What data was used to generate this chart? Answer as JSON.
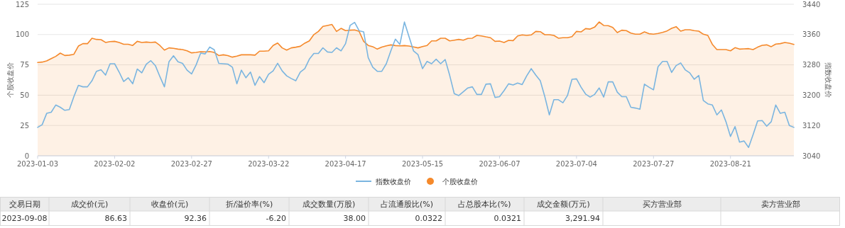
{
  "chart_data": [
    {
      "type": "area",
      "ylabel": "个股收盘价",
      "y2label": "指数收盘价",
      "ylim": [
        0,
        125
      ],
      "yticks": [
        0,
        25,
        50,
        75,
        100,
        125
      ],
      "y2lim": [
        3040,
        3440
      ],
      "y2ticks": [
        3040,
        3120,
        3200,
        3280,
        3360,
        3440
      ],
      "grid": "y",
      "legend": "bottom",
      "marker": "none",
      "line_style": "solid",
      "categories": [
        "2023-01-03",
        null,
        null,
        null,
        null,
        null,
        null,
        null,
        null,
        null,
        null,
        null,
        null,
        null,
        null,
        null,
        null,
        "2023-02-02",
        null,
        null,
        null,
        null,
        null,
        null,
        null,
        null,
        null,
        null,
        null,
        null,
        null,
        null,
        null,
        null,
        "2023-02-27",
        null,
        null,
        null,
        null,
        null,
        null,
        null,
        null,
        null,
        null,
        null,
        null,
        null,
        null,
        null,
        null,
        "2023-03-22",
        null,
        null,
        null,
        null,
        null,
        null,
        null,
        null,
        null,
        null,
        null,
        null,
        null,
        null,
        null,
        null,
        "2023-04-17",
        null,
        null,
        null,
        null,
        null,
        null,
        null,
        null,
        null,
        null,
        null,
        null,
        null,
        null,
        null,
        null,
        "2023-05-15",
        null,
        null,
        null,
        null,
        null,
        null,
        null,
        null,
        null,
        null,
        null,
        null,
        null,
        null,
        null,
        null,
        "2023-06-07",
        null,
        null,
        null,
        null,
        null,
        null,
        null,
        null,
        null,
        null,
        null,
        null,
        null,
        null,
        null,
        null,
        "2023-07-04",
        null,
        null,
        null,
        null,
        null,
        null,
        null,
        null,
        null,
        null,
        null,
        null,
        null,
        null,
        null,
        null,
        "2023-07-27",
        null,
        null,
        null,
        null,
        null,
        null,
        null,
        null,
        null,
        null,
        null,
        null,
        null,
        null,
        null,
        null,
        "2023-08-21",
        null,
        null,
        null,
        null,
        null,
        null,
        null,
        null,
        null,
        null,
        null,
        null,
        null,
        null
      ],
      "series": [
        {
          "name": "指数收盘价",
          "type": "line",
          "axis": "y2",
          "color": "#7ab5e0",
          "values": [
            3115,
            3122,
            3152,
            3155,
            3174,
            3168,
            3160,
            3162,
            3196,
            3226,
            3222,
            3222,
            3238,
            3263,
            3267,
            3253,
            3283,
            3283,
            3261,
            3236,
            3246,
            3230,
            3269,
            3259,
            3282,
            3291,
            3278,
            3249,
            3222,
            3288,
            3304,
            3288,
            3284,
            3266,
            3256,
            3280,
            3311,
            3309,
            3327,
            3320,
            3284,
            3283,
            3282,
            3274,
            3230,
            3266,
            3246,
            3261,
            3226,
            3249,
            3233,
            3255,
            3264,
            3284,
            3264,
            3251,
            3244,
            3238,
            3261,
            3270,
            3295,
            3310,
            3310,
            3325,
            3314,
            3313,
            3325,
            3317,
            3336,
            3384,
            3392,
            3370,
            3367,
            3299,
            3274,
            3263,
            3263,
            3283,
            3317,
            3348,
            3334,
            3393,
            3355,
            3317,
            3307,
            3270,
            3289,
            3283,
            3295,
            3283,
            3294,
            3252,
            3204,
            3199,
            3209,
            3219,
            3222,
            3202,
            3202,
            3229,
            3230,
            3194,
            3196,
            3212,
            3230,
            3227,
            3232,
            3228,
            3251,
            3270,
            3253,
            3238,
            3196,
            3148,
            3188,
            3188,
            3180,
            3199,
            3242,
            3243,
            3221,
            3203,
            3195,
            3202,
            3219,
            3195,
            3235,
            3235,
            3208,
            3196,
            3196,
            3168,
            3166,
            3163,
            3229,
            3221,
            3214,
            3275,
            3289,
            3289,
            3260,
            3278,
            3285,
            3267,
            3259,
            3242,
            3252,
            3186,
            3177,
            3174,
            3148,
            3161,
            3130,
            3091,
            3117,
            3076,
            3079,
            3062,
            3096,
            3132,
            3133,
            3118,
            3130,
            3174,
            3152,
            3155,
            3120,
            3115
          ]
        },
        {
          "name": "个股收盘价",
          "type": "area",
          "axis": "y",
          "color": "#f5892b",
          "values": [
            77,
            77.3,
            78.3,
            80.2,
            82,
            84.7,
            82.7,
            83,
            83.7,
            90.5,
            92.5,
            92.5,
            97,
            96,
            95.8,
            93.5,
            94.2,
            94.4,
            93.5,
            92,
            92,
            91,
            94.4,
            93.5,
            93.8,
            93.5,
            93.8,
            91,
            87.2,
            89,
            88.6,
            88,
            87.6,
            86.6,
            84.9,
            85.3,
            85.9,
            85.7,
            86,
            85.3,
            82.7,
            83.3,
            82.7,
            81.4,
            82.2,
            83.3,
            83.3,
            83.3,
            83,
            86.3,
            86.3,
            86.6,
            91,
            93,
            89,
            87.2,
            89,
            89.6,
            90.3,
            92.9,
            94.8,
            100,
            102.6,
            106.7,
            107.5,
            108.3,
            102.6,
            105.1,
            103.2,
            103.6,
            103.8,
            102.6,
            94.4,
            91,
            90,
            88,
            89.6,
            90.7,
            91.5,
            90.9,
            90.7,
            90.9,
            90.5,
            89.8,
            89,
            90.1,
            91,
            94.8,
            94.8,
            97,
            97,
            94.8,
            95.4,
            96,
            95.4,
            96.8,
            97,
            99.3,
            98.9,
            98.1,
            97.4,
            94.4,
            94.6,
            93.5,
            95.2,
            95,
            98.9,
            99.7,
            99.3,
            99.7,
            102.6,
            102.4,
            99.9,
            99.9,
            99.3,
            97,
            97.4,
            97.4,
            98.3,
            102.6,
            102.2,
            104.9,
            104.5,
            106.1,
            110.4,
            107.5,
            107.3,
            105.9,
            101.6,
            103.6,
            103.2,
            101.2,
            100.3,
            100.3,
            102.2,
            100.7,
            100.3,
            100.9,
            101.8,
            103,
            105.1,
            106.5,
            102.8,
            104,
            104,
            103.2,
            102.8,
            100.3,
            99.3,
            91.9,
            87.6,
            87.6,
            87.6,
            86.6,
            89.2,
            88,
            88.2,
            88.4,
            87.6,
            89.6,
            91.1,
            91.5,
            90,
            92.1,
            92.5,
            93.5,
            92.9,
            91.9
          ]
        }
      ]
    },
    {
      "type": "other",
      "categories": [
        "交易日期",
        "成交价(元)",
        "收盘价(元)",
        "折/溢价率(%)",
        "成交数量(万股)",
        "占流通股比(%)",
        "占总股本比(%)",
        "成交金额(万元)",
        "买方营业部",
        "卖方营业部"
      ],
      "cell_labels": [
        [
          "2023-09-08",
          "86.63",
          "92.36",
          "-6.20",
          "38.00",
          "0.0322",
          "0.0321",
          "3,291.94",
          null,
          null
        ]
      ]
    }
  ]
}
